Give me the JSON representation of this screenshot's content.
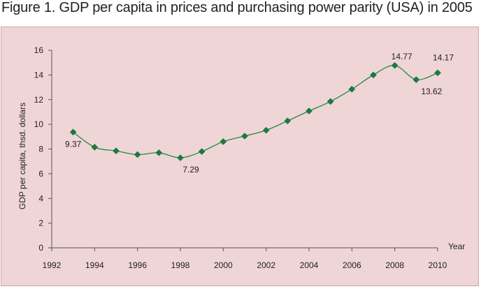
{
  "figure": {
    "title": "Figure 1. GDP per capita in prices and purchasing power parity (USA) in 2005"
  },
  "colors": {
    "background": "#f0d5d7",
    "series": "#1f8c45",
    "marker": "#1d7a3c",
    "axis": "#555555"
  },
  "chart_data": {
    "type": "line",
    "title": "",
    "xlabel": "Year",
    "ylabel": "GDP per capita, thsd. dollars",
    "xlim": [
      1992,
      2010
    ],
    "ylim": [
      0,
      16
    ],
    "x_ticks": [
      1992,
      1994,
      1996,
      1998,
      2000,
      2002,
      2004,
      2006,
      2008,
      2010
    ],
    "y_ticks": [
      0,
      2,
      4,
      6,
      8,
      10,
      12,
      14,
      16
    ],
    "grid": false,
    "legend": "none",
    "marker": "diamond",
    "smooth": true,
    "series": [
      {
        "x": [
          1993,
          1994,
          1995,
          1996,
          1997,
          1998,
          1999,
          2000,
          2001,
          2002,
          2003,
          2004,
          2005,
          2006,
          2007,
          2008,
          2009,
          2010
        ],
        "values": [
          9.37,
          8.15,
          7.85,
          7.55,
          7.7,
          7.29,
          7.8,
          8.6,
          9.05,
          9.52,
          10.28,
          11.08,
          11.85,
          12.85,
          14.0,
          14.77,
          13.62,
          14.17
        ]
      }
    ],
    "data_labels": [
      {
        "x": 1993,
        "y": 9.37,
        "text": "9.37"
      },
      {
        "x": 1998,
        "y": 7.29,
        "text": "7.29"
      },
      {
        "x": 2008,
        "y": 14.77,
        "text": "14.77"
      },
      {
        "x": 2009,
        "y": 13.62,
        "text": "13.62"
      },
      {
        "x": 2010,
        "y": 14.17,
        "text": "14.17"
      }
    ]
  }
}
